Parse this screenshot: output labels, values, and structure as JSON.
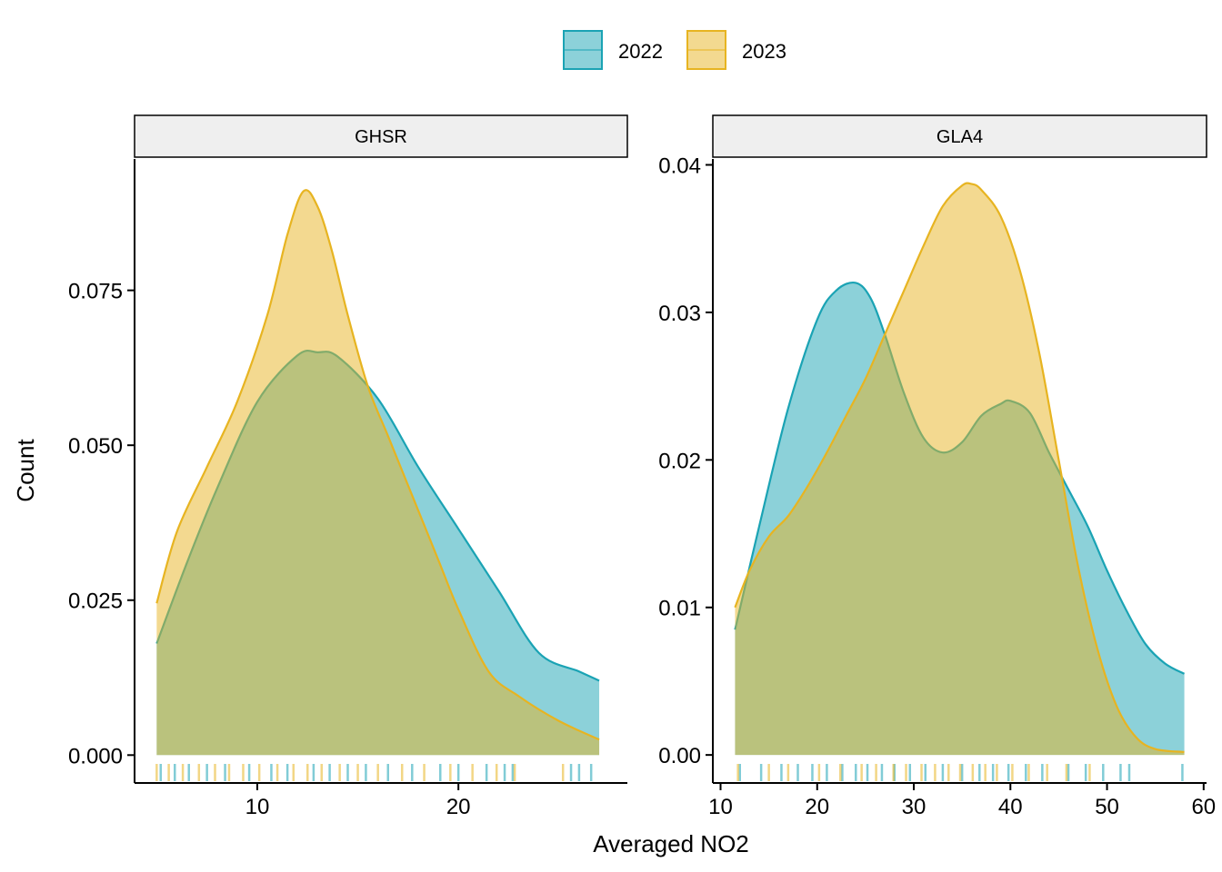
{
  "chart_data": {
    "type": "area",
    "xlabel": "Averaged NO2",
    "ylabel": "Count",
    "legend": {
      "placement": "top",
      "entries": [
        {
          "label": "2022",
          "fill": "#1AA3B4",
          "stroke": "#1AA3B4"
        },
        {
          "label": "2023",
          "fill": "#E7B421",
          "stroke": "#E7B421"
        }
      ]
    },
    "fill_opacity": 0.5,
    "grid": false,
    "panels": [
      {
        "title": "GHSR",
        "xlim": [
          3.9,
          28.4
        ],
        "ylim": [
          -0.0045,
          0.0962
        ],
        "xticks": [
          10,
          20
        ],
        "yticks": [
          0.0,
          0.025,
          0.05,
          0.075
        ],
        "ytick_labels": [
          "0.000",
          "0.025",
          "0.050",
          "0.075"
        ],
        "series": [
          {
            "name": "2022",
            "x": [
              5.0,
              6.5,
              8.0,
              10.0,
              12.0,
              13.0,
              14.0,
              16.0,
              18.0,
              20.0,
              22.0,
              24.0,
              26.0,
              27.0
            ],
            "y": [
              0.018,
              0.031,
              0.043,
              0.057,
              0.0645,
              0.065,
              0.0643,
              0.0575,
              0.0465,
              0.0365,
              0.0265,
              0.0165,
              0.0135,
              0.012
            ]
          },
          {
            "name": "2023",
            "x": [
              5.0,
              6.0,
              7.5,
              9.0,
              10.5,
              11.5,
              12.3,
              13.0,
              13.7,
              14.5,
              15.5,
              16.5,
              17.5,
              19.0,
              20.0,
              21.5,
              23.0,
              25.0,
              27.0
            ],
            "y": [
              0.0245,
              0.036,
              0.0465,
              0.057,
              0.071,
              0.084,
              0.091,
              0.0885,
              0.0815,
              0.071,
              0.0595,
              0.0515,
              0.0435,
              0.0315,
              0.0235,
              0.0135,
              0.0095,
              0.0055,
              0.0025
            ]
          }
        ],
        "rug": {
          "2022": [
            5.2,
            5.9,
            6.6,
            7.5,
            8.4,
            9.6,
            10.7,
            11.5,
            12.8,
            13.6,
            14.5,
            15.4,
            16.5,
            17.7,
            19.1,
            20.0,
            21.4,
            22.3,
            22.7,
            25.6,
            26.0,
            26.6
          ],
          "2023": [
            5.0,
            5.6,
            6.3,
            7.1,
            7.9,
            8.6,
            9.3,
            10.1,
            11.0,
            11.8,
            12.5,
            13.2,
            14.1,
            15.0,
            16.0,
            17.2,
            18.3,
            19.6,
            20.7,
            21.9,
            22.8,
            25.2
          ]
        }
      },
      {
        "title": "GLA4",
        "xlim": [
          9.2,
          60.3
        ],
        "ylim": [
          -0.0019,
          0.0404
        ],
        "xticks": [
          10,
          20,
          30,
          40,
          50,
          60
        ],
        "yticks": [
          0.0,
          0.01,
          0.02,
          0.03,
          0.04
        ],
        "ytick_labels": [
          "0.00",
          "0.01",
          "0.02",
          "0.03",
          "0.04"
        ],
        "series": [
          {
            "name": "2022",
            "x": [
              11.5,
              14.0,
              17.0,
              20.0,
              22.0,
              24.0,
              25.5,
              27.0,
              29.0,
              31.0,
              33.0,
              35.0,
              37.0,
              39.0,
              40.0,
              42.0,
              44.0,
              46.0,
              48.0,
              50.0,
              52.0,
              54.0,
              56.0,
              58.0
            ],
            "y": [
              0.0085,
              0.0155,
              0.0235,
              0.0295,
              0.0315,
              0.032,
              0.031,
              0.0285,
              0.0245,
              0.0215,
              0.0205,
              0.0212,
              0.023,
              0.0238,
              0.024,
              0.0232,
              0.0205,
              0.018,
              0.0155,
              0.0125,
              0.0098,
              0.0075,
              0.0062,
              0.0055
            ]
          },
          {
            "name": "2023",
            "x": [
              11.5,
              13.0,
              15.0,
              17.0,
              19.0,
              21.0,
              23.0,
              25.0,
              27.0,
              29.0,
              31.0,
              33.0,
              35.0,
              36.0,
              37.0,
              39.0,
              41.0,
              43.0,
              45.0,
              47.0,
              49.0,
              51.0,
              53.0,
              55.0,
              58.0
            ],
            "y": [
              0.01,
              0.0125,
              0.0148,
              0.0162,
              0.0182,
              0.0205,
              0.023,
              0.0255,
              0.0285,
              0.0315,
              0.0345,
              0.0372,
              0.0386,
              0.0387,
              0.0383,
              0.0365,
              0.0328,
              0.0272,
              0.02,
              0.0128,
              0.0072,
              0.0033,
              0.0012,
              0.0004,
              0.0002
            ]
          }
        ],
        "rug": {
          "2022": [
            12.0,
            14.2,
            16.3,
            18.0,
            19.5,
            21.0,
            22.6,
            24.0,
            25.2,
            26.7,
            28.0,
            29.6,
            31.2,
            33.0,
            35.0,
            36.8,
            38.2,
            39.8,
            41.6,
            43.3,
            46.0,
            47.8,
            49.6,
            51.4,
            52.3,
            57.8
          ],
          "2023": [
            11.8,
            15.0,
            17.0,
            20.2,
            22.4,
            24.6,
            26.1,
            27.9,
            29.2,
            30.8,
            32.2,
            33.6,
            34.8,
            36.1,
            37.4,
            38.6,
            40.2,
            41.9,
            43.8,
            45.8,
            48.2
          ]
        }
      }
    ]
  }
}
